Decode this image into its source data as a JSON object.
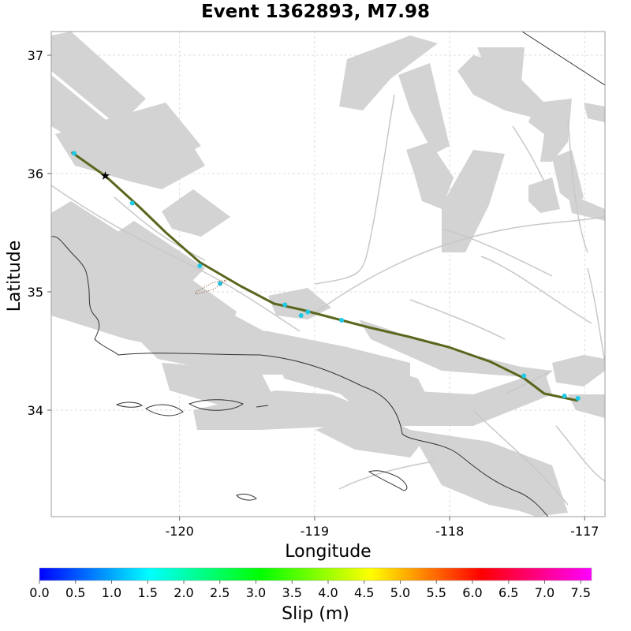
{
  "title": "Event 1362893, M7.98",
  "map": {
    "xlabel": "Longitude",
    "ylabel": "Latitude",
    "xlim": [
      -120.95,
      -116.85
    ],
    "ylim": [
      33.1,
      37.2
    ],
    "xticks": [
      "-120",
      "-119",
      "-118",
      "-117"
    ],
    "xtick_values": [
      -120,
      -119,
      -118,
      -117
    ],
    "yticks": [
      "34",
      "35",
      "36",
      "37"
    ],
    "ytick_values": [
      34,
      35,
      36,
      37
    ],
    "grid": true,
    "hypocenter": {
      "lon": -120.55,
      "lat": 35.98,
      "symbol": "star"
    },
    "rupture_trace": [
      [
        -120.8,
        36.18
      ],
      [
        -120.55,
        35.98
      ],
      [
        -120.3,
        35.72
      ],
      [
        -120.1,
        35.5
      ],
      [
        -119.85,
        35.25
      ],
      [
        -119.55,
        35.05
      ],
      [
        -119.3,
        34.9
      ],
      [
        -119.1,
        34.85
      ],
      [
        -118.9,
        34.79
      ],
      [
        -118.6,
        34.7
      ],
      [
        -118.3,
        34.62
      ],
      [
        -118.0,
        34.53
      ],
      [
        -117.7,
        34.41
      ],
      [
        -117.45,
        34.27
      ],
      [
        -117.3,
        34.14
      ],
      [
        -117.05,
        34.08
      ]
    ],
    "colors": {
      "fault_section": "#d3d3d3",
      "fault_trace": "#c8c8c8",
      "coastline": "#333333",
      "rupture": "#556b1f",
      "rupture_low_slip": "#1ec8e6",
      "hypocenter": "#000000"
    }
  },
  "colorbar": {
    "label": "Slip (m)",
    "ticks": [
      "0.0",
      "0.5",
      "1.0",
      "1.5",
      "2.0",
      "2.5",
      "3.0",
      "3.5",
      "4.0",
      "4.5",
      "5.0",
      "5.5",
      "6.0",
      "6.5",
      "7.0",
      "7.5"
    ],
    "tick_values": [
      0.0,
      0.5,
      1.0,
      1.5,
      2.0,
      2.5,
      3.0,
      3.5,
      4.0,
      4.5,
      5.0,
      5.5,
      6.0,
      6.5,
      7.0,
      7.5
    ],
    "range": [
      0,
      7.65
    ],
    "gradient_colors": [
      "#0000ff",
      "#00ffff",
      "#00ff00",
      "#ffff00",
      "#ff0000",
      "#ff00ff"
    ]
  }
}
